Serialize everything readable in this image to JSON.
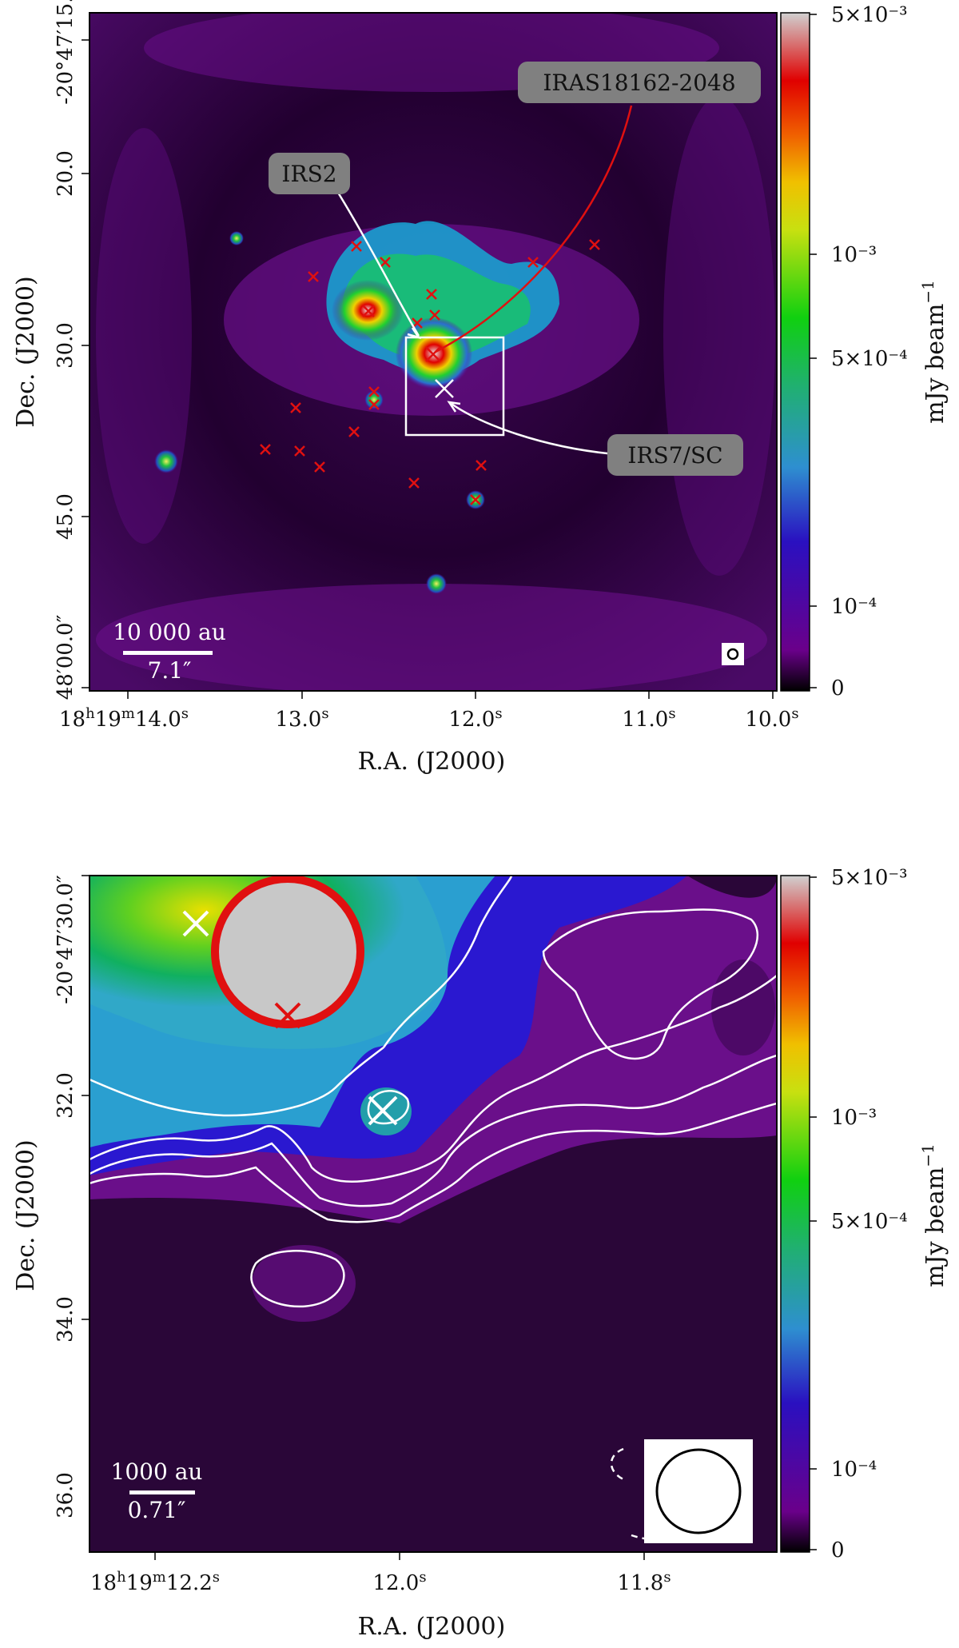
{
  "figure": {
    "top_panel": {
      "x_axis_label": "R.A. (J2000)",
      "y_axis_label": "Dec. (J2000)",
      "x_ticks": [
        {
          "ra": "18h19m14.0s",
          "h": "18",
          "m": "19",
          "s": "14.0"
        },
        {
          "ra": "13.0s",
          "s": "13.0"
        },
        {
          "ra": "12.0s",
          "s": "12.0"
        },
        {
          "ra": "11.0s",
          "s": "11.0"
        },
        {
          "ra": "10.0s",
          "s": "10.0"
        }
      ],
      "y_ticks": [
        "-20°47′15.0″",
        "20.0",
        "30.0",
        "45.0",
        "48′00.0″"
      ],
      "y_ticks_full": [
        "-20°47'15.0\"",
        "20.0",
        "30.0",
        "45.0",
        "48'00.0\""
      ],
      "colorbar": {
        "label": "mJy beam",
        "label_exp": "−1",
        "ticks": [
          "5×10⁻³",
          "10⁻³",
          "5×10⁻⁴",
          "10⁻⁴",
          "0"
        ]
      },
      "annotations": [
        "IRAS18162-2048",
        "IRS2",
        "IRS7/SC"
      ],
      "scalebar": {
        "physical": "10 000 au",
        "angular": "7.1″"
      }
    },
    "bottom_panel": {
      "x_axis_label": "R.A. (J2000)",
      "y_axis_label": "Dec. (J2000)",
      "x_ticks": [
        "18h19m12.2s",
        "12.0s",
        "11.8s"
      ],
      "x_ticks_parts": [
        {
          "h": "18",
          "m": "19",
          "s": "12.2"
        },
        {
          "s": "12.0"
        },
        {
          "s": "11.8"
        }
      ],
      "y_ticks": [
        "-20°47′30.0″",
        "32.0",
        "34.0",
        "36.0"
      ],
      "colorbar": {
        "label": "mJy beam",
        "label_exp": "−1",
        "ticks": [
          "5×10⁻³",
          "10⁻³",
          "5×10⁻⁴",
          "10⁻⁴",
          "0"
        ]
      },
      "scalebar": {
        "physical": "1000 au",
        "angular": "0.71″"
      }
    },
    "colors": {
      "marker_red": "#e01010",
      "marker_white": "#ffffff",
      "background_purple": "#6a0f8a",
      "label_box": "#808080"
    }
  }
}
